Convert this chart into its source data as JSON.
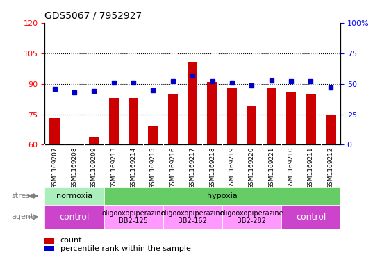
{
  "title": "GDS5067 / 7952927",
  "samples": [
    "GSM1169207",
    "GSM1169208",
    "GSM1169209",
    "GSM1169213",
    "GSM1169214",
    "GSM1169215",
    "GSM1169216",
    "GSM1169217",
    "GSM1169218",
    "GSM1169219",
    "GSM1169220",
    "GSM1169221",
    "GSM1169210",
    "GSM1169211",
    "GSM1169212"
  ],
  "counts": [
    73,
    60,
    64,
    83,
    83,
    69,
    85,
    101,
    91,
    88,
    79,
    88,
    86,
    85,
    75
  ],
  "percentiles": [
    46,
    43,
    44,
    51,
    51,
    45,
    52,
    57,
    52,
    51,
    49,
    53,
    52,
    52,
    47
  ],
  "ylim_left": [
    60,
    120
  ],
  "ylim_right": [
    0,
    100
  ],
  "yticks_left": [
    60,
    75,
    90,
    105,
    120
  ],
  "yticks_right": [
    0,
    25,
    50,
    75,
    100
  ],
  "ytick_right_labels": [
    "0",
    "25",
    "50",
    "75",
    "100%"
  ],
  "bar_color": "#cc0000",
  "dot_color": "#0000cc",
  "stress_row": [
    {
      "label": "normoxia",
      "start": 0,
      "end": 3,
      "color": "#aaeebb"
    },
    {
      "label": "hypoxia",
      "start": 3,
      "end": 15,
      "color": "#66cc66"
    }
  ],
  "agent_row": [
    {
      "label": "control",
      "start": 0,
      "end": 3,
      "color": "#cc44cc",
      "fontsize": 9,
      "text_color": "white"
    },
    {
      "label": "oligooxopiperazine\nBB2-125",
      "start": 3,
      "end": 6,
      "color": "#ff99ff",
      "fontsize": 7,
      "text_color": "black"
    },
    {
      "label": "oligooxopiperazine\nBB2-162",
      "start": 6,
      "end": 9,
      "color": "#ff99ff",
      "fontsize": 7,
      "text_color": "black"
    },
    {
      "label": "oligooxopiperazine\nBB2-282",
      "start": 9,
      "end": 12,
      "color": "#ff99ff",
      "fontsize": 7,
      "text_color": "black"
    },
    {
      "label": "control",
      "start": 12,
      "end": 15,
      "color": "#cc44cc",
      "fontsize": 9,
      "text_color": "white"
    }
  ],
  "stress_label": "stress",
  "agent_label": "agent",
  "legend_count_label": "count",
  "legend_pct_label": "percentile rank within the sample",
  "xtick_bg_color": "#cccccc"
}
